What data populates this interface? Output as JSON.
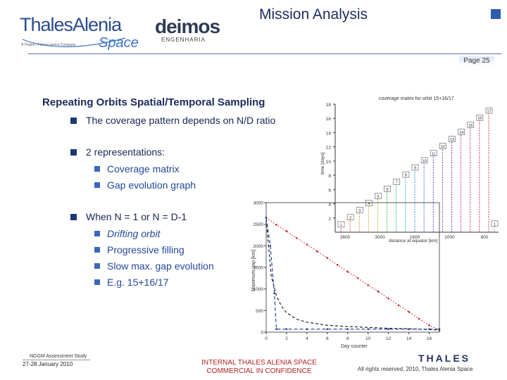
{
  "header": {
    "title": "Mission Analysis",
    "page_label": "Page 25",
    "logos": {
      "tas_main": "ThalesAlenia",
      "tas_space": "Space",
      "tas_tagline": "A Thales / Finmeccanica Company",
      "deimos_main": "deimos",
      "deimos_sub": "ENGENHARIA"
    }
  },
  "slide": {
    "title": "Repeating Orbits Spatial/Temporal Sampling",
    "bullets": [
      {
        "text": "The coverage pattern depends on N/D ratio",
        "subs": []
      },
      {
        "text": "2 representations:",
        "subs": [
          "Coverage matrix",
          "Gap evolution graph"
        ]
      },
      {
        "text": "When N = 1 or N = D-1",
        "subs": [
          "Drifting orbit",
          "Progressive filling",
          "Slow max. gap evolution",
          "E.g. 15+16/17"
        ]
      }
    ]
  },
  "footer": {
    "study": "NGGM Assessment Study",
    "date": "27-28 January 2010",
    "confidential_line1": "INTERNAL THALES ALENIA SPACE",
    "confidential_line2": "COMMERCIAL IN CONFIDENCE",
    "rights": "All rights reserved, 2010, Thales Alenia Space",
    "brand": "THALES"
  },
  "colors": {
    "title_blue": "#1c2a5c",
    "sub_blue": "#24479a",
    "confidential_red": "#b22222",
    "red_series": "#d02020",
    "blue_series": "#1f3aa0"
  },
  "chart_data": [
    {
      "type": "scatter",
      "title": "coverage matrix for orbit 15+16/17",
      "xlabel": "distance at equator [km]",
      "ylabel": "time [days]",
      "xticks": [
        "2600",
        "3000",
        "1600",
        "1000",
        "600"
      ],
      "yticks": [
        "2",
        "4",
        "6",
        "8",
        "10",
        "12",
        "14",
        "16",
        "18"
      ],
      "ylim": [
        0,
        18
      ],
      "grid": false,
      "series": [
        {
          "values": [
            1,
            2,
            3,
            4,
            5,
            6,
            7,
            8,
            9,
            10,
            11,
            12,
            13,
            14,
            15,
            16,
            17
          ],
          "point_labels": [
            "1",
            "2",
            "3",
            "4",
            "5",
            "6",
            "7",
            "8",
            "9",
            "10",
            "11",
            "12",
            "13",
            "14",
            "15",
            "16",
            "17"
          ]
        }
      ]
    },
    {
      "type": "line",
      "xlabel": "Day counter",
      "ylabel": "Maximum gap [km]",
      "xticks": [
        "0",
        "2",
        "4",
        "6",
        "8",
        "10",
        "12",
        "14",
        "16"
      ],
      "yticks": [
        "0",
        "500",
        "1000",
        "1500",
        "2000",
        "2500",
        "3000"
      ],
      "xlim": [
        0,
        17
      ],
      "ylim": [
        0,
        3000
      ],
      "grid": false,
      "series": [
        {
          "style": "red-dotted",
          "x": [
            0,
            1,
            2,
            3,
            4,
            5,
            6,
            7,
            8,
            9,
            10,
            11,
            12,
            13,
            14,
            15,
            16,
            17
          ],
          "values": [
            2650,
            2490,
            2340,
            2180,
            2030,
            1870,
            1720,
            1560,
            1400,
            1250,
            1090,
            940,
            780,
            620,
            470,
            310,
            160,
            40
          ]
        },
        {
          "style": "black-dashed",
          "x": [
            0,
            0.5,
            1,
            1.5,
            2,
            3,
            4,
            6,
            8,
            10,
            12,
            14,
            16,
            17
          ],
          "values": [
            2600,
            1300,
            850,
            600,
            450,
            300,
            230,
            160,
            130,
            110,
            90,
            80,
            60,
            50
          ]
        },
        {
          "style": "blue-dashed",
          "x": [
            0,
            0.4,
            0.8,
            1,
            2,
            4,
            6,
            8,
            10,
            12,
            14,
            16,
            17
          ],
          "values": [
            2650,
            2000,
            900,
            70,
            70,
            70,
            70,
            70,
            70,
            70,
            70,
            70,
            70
          ]
        }
      ]
    }
  ]
}
